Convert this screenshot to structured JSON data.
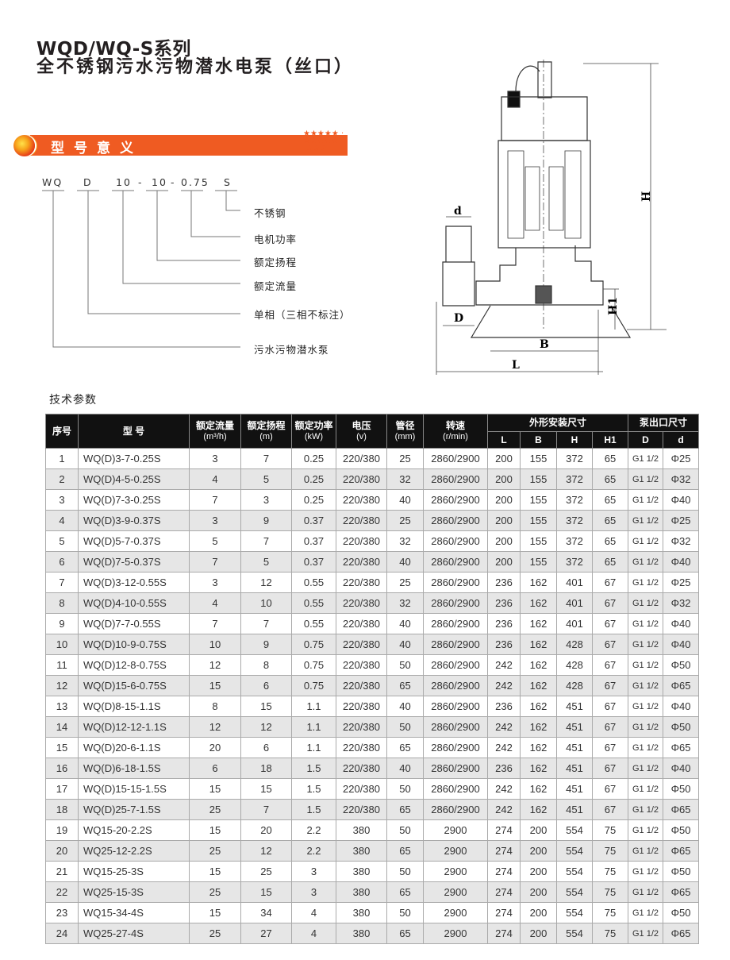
{
  "header": {
    "title_line1": "WQD/WQ-S系列",
    "title_line2": "全不锈钢污水污物潜水电泵（丝口）"
  },
  "banner": {
    "label": "型号意义",
    "accent_color": "#ef5b22"
  },
  "model_code": {
    "parts": [
      "WQ",
      "D",
      "10",
      "-",
      "10",
      "-",
      "0.75",
      "S"
    ],
    "meanings": [
      "不锈钢",
      "电机功率",
      "额定扬程",
      "额定流量",
      "单相（三相不标注）",
      "污水污物潜水泵"
    ]
  },
  "diagram": {
    "labels": {
      "d": "d",
      "D": "D",
      "B": "B",
      "L": "L",
      "H": "H",
      "H1": "H1"
    }
  },
  "section_title": "技术参数",
  "table": {
    "headers": {
      "no": "序号",
      "model": "型 号",
      "flow": "额定流量",
      "flow_unit": "(m³/h)",
      "head": "额定扬程",
      "head_unit": "(m)",
      "power": "额定功率",
      "power_unit": "(kW)",
      "voltage": "电压",
      "voltage_unit": "(v)",
      "pipe": "管径",
      "pipe_unit": "(mm)",
      "speed": "转速",
      "speed_unit": "(r/min)",
      "dims": "外形安装尺寸",
      "L": "L",
      "B": "B",
      "H": "H",
      "H1": "H1",
      "outlet": "泵出口尺寸",
      "D": "D",
      "d": "d"
    },
    "rows": [
      [
        "1",
        "WQ(D)3-7-0.25S",
        "3",
        "7",
        "0.25",
        "220/380",
        "25",
        "2860/2900",
        "200",
        "155",
        "372",
        "65",
        "G1 1/2",
        "Φ25"
      ],
      [
        "2",
        "WQ(D)4-5-0.25S",
        "4",
        "5",
        "0.25",
        "220/380",
        "32",
        "2860/2900",
        "200",
        "155",
        "372",
        "65",
        "G1 1/2",
        "Φ32"
      ],
      [
        "3",
        "WQ(D)7-3-0.25S",
        "7",
        "3",
        "0.25",
        "220/380",
        "40",
        "2860/2900",
        "200",
        "155",
        "372",
        "65",
        "G1 1/2",
        "Φ40"
      ],
      [
        "4",
        "WQ(D)3-9-0.37S",
        "3",
        "9",
        "0.37",
        "220/380",
        "25",
        "2860/2900",
        "200",
        "155",
        "372",
        "65",
        "G1 1/2",
        "Φ25"
      ],
      [
        "5",
        "WQ(D)5-7-0.37S",
        "5",
        "7",
        "0.37",
        "220/380",
        "32",
        "2860/2900",
        "200",
        "155",
        "372",
        "65",
        "G1 1/2",
        "Φ32"
      ],
      [
        "6",
        "WQ(D)7-5-0.37S",
        "7",
        "5",
        "0.37",
        "220/380",
        "40",
        "2860/2900",
        "200",
        "155",
        "372",
        "65",
        "G1 1/2",
        "Φ40"
      ],
      [
        "7",
        "WQ(D)3-12-0.55S",
        "3",
        "12",
        "0.55",
        "220/380",
        "25",
        "2860/2900",
        "236",
        "162",
        "401",
        "67",
        "G1 1/2",
        "Φ25"
      ],
      [
        "8",
        "WQ(D)4-10-0.55S",
        "4",
        "10",
        "0.55",
        "220/380",
        "32",
        "2860/2900",
        "236",
        "162",
        "401",
        "67",
        "G1 1/2",
        "Φ32"
      ],
      [
        "9",
        "WQ(D)7-7-0.55S",
        "7",
        "7",
        "0.55",
        "220/380",
        "40",
        "2860/2900",
        "236",
        "162",
        "401",
        "67",
        "G1 1/2",
        "Φ40"
      ],
      [
        "10",
        "WQ(D)10-9-0.75S",
        "10",
        "9",
        "0.75",
        "220/380",
        "40",
        "2860/2900",
        "236",
        "162",
        "428",
        "67",
        "G1 1/2",
        "Φ40"
      ],
      [
        "11",
        "WQ(D)12-8-0.75S",
        "12",
        "8",
        "0.75",
        "220/380",
        "50",
        "2860/2900",
        "242",
        "162",
        "428",
        "67",
        "G1 1/2",
        "Φ50"
      ],
      [
        "12",
        "WQ(D)15-6-0.75S",
        "15",
        "6",
        "0.75",
        "220/380",
        "65",
        "2860/2900",
        "242",
        "162",
        "428",
        "67",
        "G1 1/2",
        "Φ65"
      ],
      [
        "13",
        "WQ(D)8-15-1.1S",
        "8",
        "15",
        "1.1",
        "220/380",
        "40",
        "2860/2900",
        "236",
        "162",
        "451",
        "67",
        "G1 1/2",
        "Φ40"
      ],
      [
        "14",
        "WQ(D)12-12-1.1S",
        "12",
        "12",
        "1.1",
        "220/380",
        "50",
        "2860/2900",
        "242",
        "162",
        "451",
        "67",
        "G1 1/2",
        "Φ50"
      ],
      [
        "15",
        "WQ(D)20-6-1.1S",
        "20",
        "6",
        "1.1",
        "220/380",
        "65",
        "2860/2900",
        "242",
        "162",
        "451",
        "67",
        "G1 1/2",
        "Φ65"
      ],
      [
        "16",
        "WQ(D)6-18-1.5S",
        "6",
        "18",
        "1.5",
        "220/380",
        "40",
        "2860/2900",
        "236",
        "162",
        "451",
        "67",
        "G1 1/2",
        "Φ40"
      ],
      [
        "17",
        "WQ(D)15-15-1.5S",
        "15",
        "15",
        "1.5",
        "220/380",
        "50",
        "2860/2900",
        "242",
        "162",
        "451",
        "67",
        "G1 1/2",
        "Φ50"
      ],
      [
        "18",
        "WQ(D)25-7-1.5S",
        "25",
        "7",
        "1.5",
        "220/380",
        "65",
        "2860/2900",
        "242",
        "162",
        "451",
        "67",
        "G1 1/2",
        "Φ65"
      ],
      [
        "19",
        "WQ15-20-2.2S",
        "15",
        "20",
        "2.2",
        "380",
        "50",
        "2900",
        "274",
        "200",
        "554",
        "75",
        "G1 1/2",
        "Φ50"
      ],
      [
        "20",
        "WQ25-12-2.2S",
        "25",
        "12",
        "2.2",
        "380",
        "65",
        "2900",
        "274",
        "200",
        "554",
        "75",
        "G1 1/2",
        "Φ65"
      ],
      [
        "21",
        "WQ15-25-3S",
        "15",
        "25",
        "3",
        "380",
        "50",
        "2900",
        "274",
        "200",
        "554",
        "75",
        "G1 1/2",
        "Φ50"
      ],
      [
        "22",
        "WQ25-15-3S",
        "25",
        "15",
        "3",
        "380",
        "65",
        "2900",
        "274",
        "200",
        "554",
        "75",
        "G1 1/2",
        "Φ65"
      ],
      [
        "23",
        "WQ15-34-4S",
        "15",
        "34",
        "4",
        "380",
        "50",
        "2900",
        "274",
        "200",
        "554",
        "75",
        "G1 1/2",
        "Φ50"
      ],
      [
        "24",
        "WQ25-27-4S",
        "25",
        "27",
        "4",
        "380",
        "65",
        "2900",
        "274",
        "200",
        "554",
        "75",
        "G1 1/2",
        "Φ65"
      ]
    ]
  }
}
